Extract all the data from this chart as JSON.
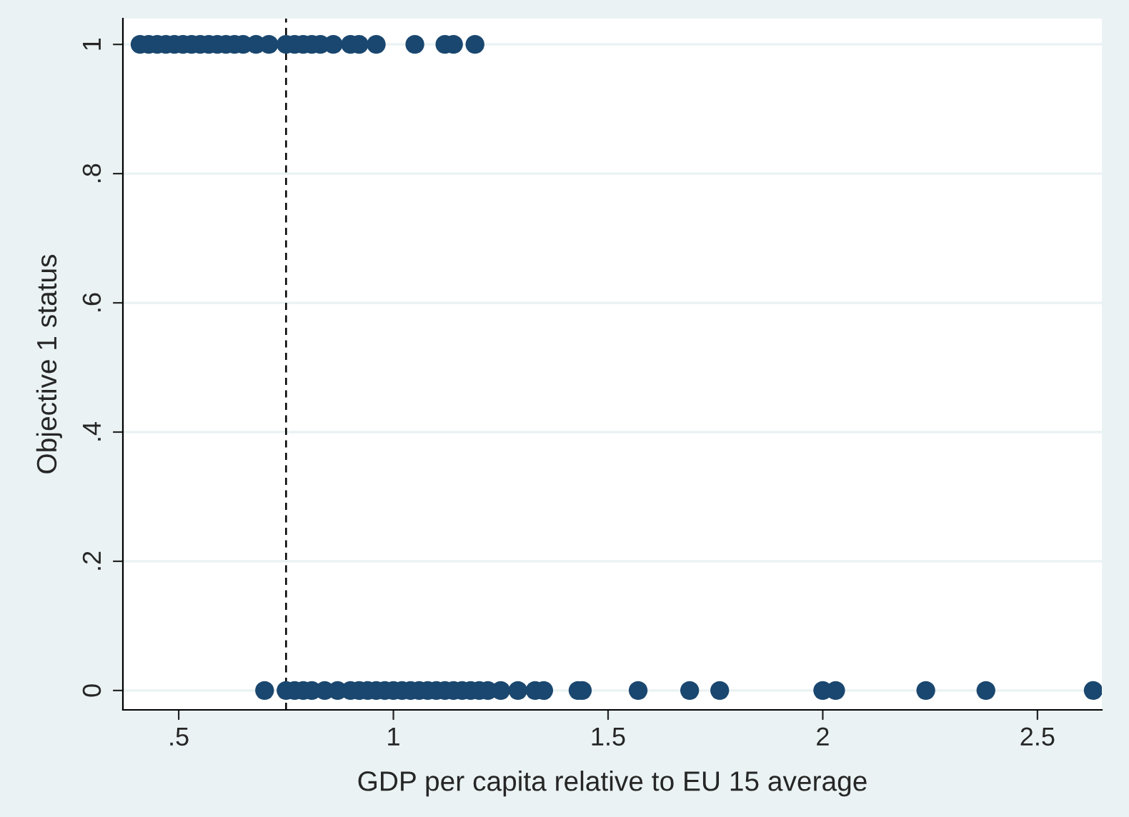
{
  "chart_data": {
    "type": "scatter",
    "xlabel": "GDP per capita relative to EU 15 average",
    "ylabel": "Objective 1 status",
    "x": [
      0.41,
      0.43,
      0.45,
      0.47,
      0.49,
      0.51,
      0.53,
      0.55,
      0.57,
      0.59,
      0.61,
      0.63,
      0.65,
      0.68,
      0.71,
      0.75,
      0.77,
      0.79,
      0.81,
      0.83,
      0.86,
      0.9,
      0.92,
      0.96,
      1.05,
      1.12,
      1.14,
      1.19,
      0.7,
      0.75,
      0.77,
      0.79,
      0.81,
      0.84,
      0.87,
      0.9,
      0.92,
      0.94,
      0.96,
      0.98,
      1.0,
      1.02,
      1.04,
      1.06,
      1.08,
      1.1,
      1.12,
      1.14,
      1.16,
      1.18,
      1.2,
      1.22,
      1.25,
      1.29,
      1.33,
      1.35,
      1.43,
      1.44,
      1.57,
      1.69,
      1.76,
      2.0,
      2.03,
      2.24,
      2.38,
      2.63
    ],
    "series": [
      {
        "color": "#1a476f",
        "values": [
          1,
          1,
          1,
          1,
          1,
          1,
          1,
          1,
          1,
          1,
          1,
          1,
          1,
          1,
          1,
          1,
          1,
          1,
          1,
          1,
          1,
          1,
          1,
          1,
          1,
          1,
          1,
          1,
          0,
          0,
          0,
          0,
          0,
          0,
          0,
          0,
          0,
          0,
          0,
          0,
          0,
          0,
          0,
          0,
          0,
          0,
          0,
          0,
          0,
          0,
          0,
          0,
          0,
          0,
          0,
          0,
          0,
          0,
          0,
          0,
          0,
          0,
          0,
          0,
          0,
          0
        ]
      }
    ],
    "marker": "circle",
    "xlim": [
      0.37,
      2.65
    ],
    "ylim": [
      -0.03,
      1.04
    ],
    "xticks": [
      {
        "value": 0.5,
        "label": ".5"
      },
      1,
      1.5,
      2,
      2.5
    ],
    "yticks": [
      0,
      {
        "value": 0.2,
        "label": ".2"
      },
      {
        "value": 0.4,
        "label": ".4"
      },
      {
        "value": 0.6,
        "label": ".6"
      },
      {
        "value": 0.8,
        "label": ".8"
      },
      1
    ],
    "grid": "y",
    "ref_lines": [
      {
        "axis": "x",
        "value": 0.75,
        "color": "#000000",
        "line_style": "dashed"
      }
    ]
  }
}
